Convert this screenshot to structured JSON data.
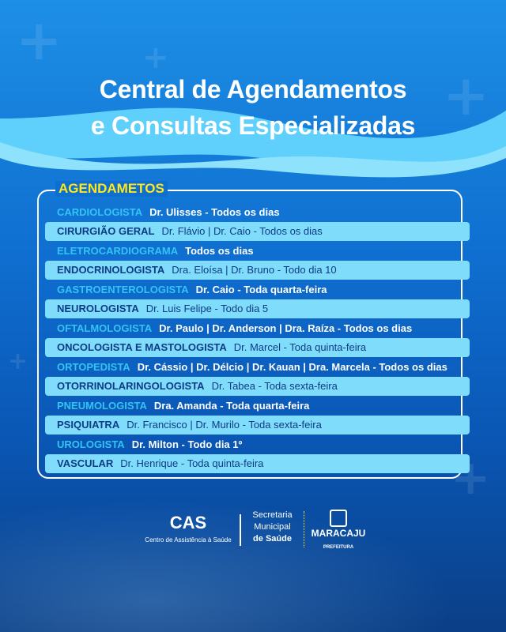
{
  "header": {
    "title_line1": "Central de Agendamentos",
    "title_line2": "e Consultas Especializadas"
  },
  "section_label": "AGENDAMETOS",
  "rows": [
    {
      "specialty": "CARDIOLOGISTA",
      "info": "Dr. Ulisses - Todos os dias"
    },
    {
      "specialty": "CIRURGIÃO GERAL",
      "info": "Dr. Flávio | Dr. Caio - Todos os dias"
    },
    {
      "specialty": "ELETROCARDIOGRAMA",
      "info": "Todos os dias"
    },
    {
      "specialty": "ENDOCRINOLOGISTA",
      "info": "Dra. Eloísa | Dr. Bruno - Todo dia 10"
    },
    {
      "specialty": "GASTROENTEROLOGISTA",
      "info": "Dr. Caio - Toda quarta-feira"
    },
    {
      "specialty": "NEUROLOGISTA",
      "info": "Dr. Luis Felipe - Todo dia 5"
    },
    {
      "specialty": "OFTALMOLOGISTA",
      "info": "Dr. Paulo | Dr. Anderson | Dra. Raíza - Todos os dias"
    },
    {
      "specialty": "ONCOLOGISTA E MASTOLOGISTA",
      "info": "Dr. Marcel - Toda quinta-feira"
    },
    {
      "specialty": "ORTOPEDISTA",
      "info": "Dr. Cássio | Dr. Délcio | Dr. Kauan | Dra. Marcela - Todos os dias"
    },
    {
      "specialty": "OTORRINOLARINGOLOGISTA",
      "info": "Dr. Tabea - Toda sexta-feira"
    },
    {
      "specialty": "PNEUMOLOGISTA",
      "info": "Dra. Amanda - Toda quarta-feira"
    },
    {
      "specialty": "PSIQUIATRA",
      "info": "Dr. Francisco | Dr. Murilo - Toda sexta-feira"
    },
    {
      "specialty": "UROLOGISTA",
      "info": "Dr. Milton - Todo dia 1º"
    },
    {
      "specialty": "VASCULAR",
      "info": "Dr. Henrique - Toda quinta-feira"
    }
  ],
  "footer": {
    "cas_title": "CAS",
    "cas_subtitle": "Centro de Assistência à Saúde",
    "sec_line1": "Secretaria",
    "sec_line2": "Municipal",
    "sec_line3": "de Saúde",
    "city": "MARACAJU",
    "city_sub": "PREFEITURA"
  },
  "colors": {
    "highlight_row": "#80dcfb",
    "specialty_text": "#33c4f5",
    "section_label": "#ffe81a",
    "dark_text": "#0d3b86"
  }
}
